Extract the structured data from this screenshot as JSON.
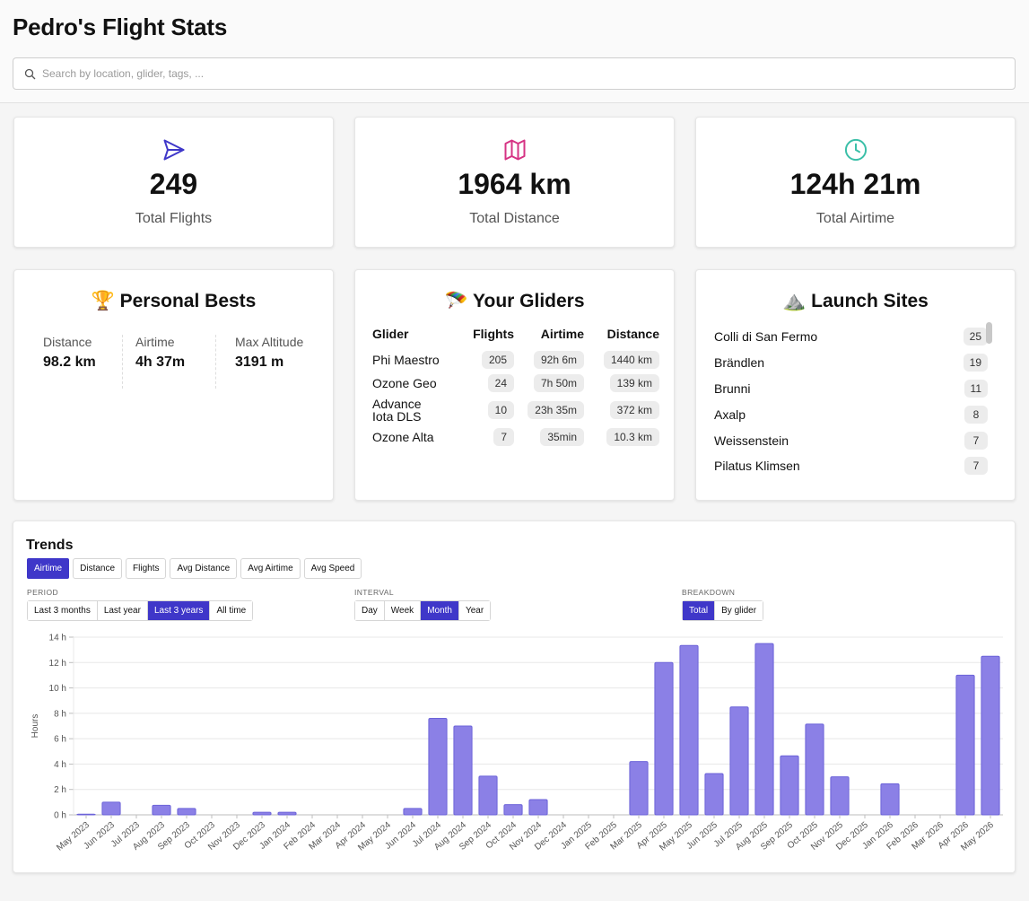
{
  "header": {
    "title": "Pedro's Flight Stats",
    "search_placeholder": "Search by location, glider, tags, ..."
  },
  "stats": [
    {
      "icon": "send-icon",
      "value": "249",
      "label": "Total Flights",
      "color": "#3f37c9"
    },
    {
      "icon": "map-icon",
      "value": "1964 km",
      "label": "Total Distance",
      "color": "#d63384"
    },
    {
      "icon": "clock-icon",
      "value": "124h 21m",
      "label": "Total Airtime",
      "color": "#3bbfa8"
    }
  ],
  "personal_bests": {
    "title": "🏆 Personal Bests",
    "items": [
      {
        "label": "Distance",
        "value": "98.2 km"
      },
      {
        "label": "Airtime",
        "value": "4h 37m"
      },
      {
        "label": "Max Altitude",
        "value": "3191 m"
      }
    ]
  },
  "gliders": {
    "title": "🪂 Your Gliders",
    "headers": [
      "Glider",
      "Flights",
      "Airtime",
      "Distance"
    ],
    "rows": [
      {
        "name": "Phi Maestro",
        "flights": "205",
        "airtime": "92h 6m",
        "distance": "1440 km"
      },
      {
        "name": "Ozone Geo",
        "flights": "24",
        "airtime": "7h 50m",
        "distance": "139 km"
      },
      {
        "name": "Advance Iota DLS",
        "flights": "10",
        "airtime": "23h 35m",
        "distance": "372 km"
      },
      {
        "name": "Ozone Alta",
        "flights": "7",
        "airtime": "35min",
        "distance": "10.3 km"
      }
    ]
  },
  "launch_sites": {
    "title": "⛰️ Launch Sites",
    "items": [
      {
        "name": "Colli di San Fermo",
        "count": "25"
      },
      {
        "name": "Brändlen",
        "count": "19"
      },
      {
        "name": "Brunni",
        "count": "11"
      },
      {
        "name": "Axalp",
        "count": "8"
      },
      {
        "name": "Weissenstein",
        "count": "7"
      },
      {
        "name": "Pilatus Klimsen",
        "count": "7"
      }
    ]
  },
  "trends": {
    "title": "Trends",
    "metrics": [
      "Airtime",
      "Distance",
      "Flights",
      "Avg Distance",
      "Avg Airtime",
      "Avg Speed"
    ],
    "active_metric": "Airtime",
    "period_label": "PERIOD",
    "periods": [
      "Last 3 months",
      "Last year",
      "Last 3 years",
      "All time"
    ],
    "active_period": "Last 3 years",
    "interval_label": "INTERVAL",
    "intervals": [
      "Day",
      "Week",
      "Month",
      "Year"
    ],
    "active_interval": "Month",
    "breakdown_label": "BREAKDOWN",
    "breakdowns": [
      "Total",
      "By glider"
    ],
    "active_breakdown": "Total"
  },
  "chart_data": {
    "type": "bar",
    "ylabel": "Hours",
    "ylim": [
      0,
      14
    ],
    "yticks": [
      "0 h",
      "2 h",
      "4 h",
      "6 h",
      "8 h",
      "10 h",
      "12 h",
      "14 h"
    ],
    "grid": true,
    "color": "#8b80e6",
    "categories": [
      "May 2023",
      "Jun 2023",
      "Jul 2023",
      "Aug 2023",
      "Sep 2023",
      "Oct 2023",
      "Nov 2023",
      "Dec 2023",
      "Jan 2024",
      "Feb 2024",
      "Mar 2024",
      "Apr 2024",
      "May 2024",
      "Jun 2024",
      "Jul 2024",
      "Aug 2024",
      "Sep 2024",
      "Oct 2024",
      "Nov 2024",
      "Dec 2024",
      "Jan 2025",
      "Feb 2025",
      "Mar 2025",
      "Apr 2025",
      "May 2025",
      "Jun 2025",
      "Jul 2025",
      "Aug 2025",
      "Sep 2025",
      "Oct 2025",
      "Nov 2025",
      "Dec 2025",
      "Jan 2026",
      "Feb 2026",
      "Mar 2026",
      "Apr 2026",
      "May 2026"
    ],
    "values": [
      0.05,
      1.0,
      0,
      0.75,
      0.5,
      0,
      0,
      0.2,
      0.2,
      0,
      0,
      0,
      0,
      0.5,
      7.6,
      7.0,
      3.05,
      0.8,
      1.2,
      0,
      0,
      0,
      4.2,
      12.0,
      13.35,
      3.25,
      8.5,
      13.5,
      4.65,
      7.15,
      3.0,
      0,
      2.45,
      0,
      0,
      11.0,
      12.5
    ]
  }
}
